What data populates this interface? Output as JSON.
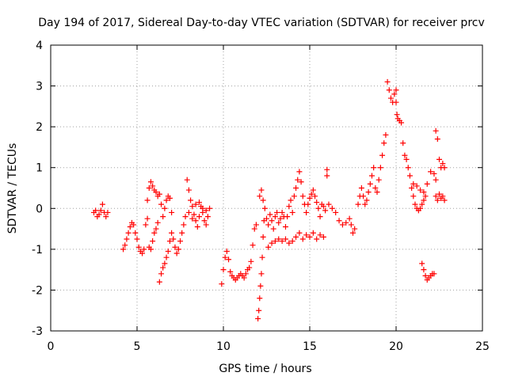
{
  "chart_data": {
    "type": "scatter",
    "title": "Day 194 of 2017, Sidereal Day-to-day VTEC variation (SDTVAR) for receiver prcv",
    "xlabel": "GPS time / hours",
    "ylabel": "SDTVAR / TECUs",
    "xlim": [
      0,
      25
    ],
    "ylim": [
      -3,
      4
    ],
    "xticks": [
      0,
      5,
      10,
      15,
      20,
      25
    ],
    "yticks": [
      -3,
      -2,
      -1,
      0,
      1,
      2,
      3,
      4
    ],
    "grid": true,
    "marker": "+",
    "color": "#ff0000",
    "series": [
      {
        "name": "SDTVAR",
        "points": [
          [
            2.5,
            -0.1
          ],
          [
            2.6,
            -0.05
          ],
          [
            2.7,
            -0.2
          ],
          [
            2.8,
            -0.15
          ],
          [
            2.9,
            -0.05
          ],
          [
            3.0,
            0.1
          ],
          [
            3.1,
            -0.1
          ],
          [
            3.2,
            -0.2
          ],
          [
            3.3,
            -0.1
          ],
          [
            4.2,
            -1.0
          ],
          [
            4.3,
            -0.9
          ],
          [
            4.4,
            -0.75
          ],
          [
            4.5,
            -0.6
          ],
          [
            4.6,
            -0.45
          ],
          [
            4.7,
            -0.35
          ],
          [
            4.8,
            -0.4
          ],
          [
            4.9,
            -0.6
          ],
          [
            5.0,
            -0.75
          ],
          [
            5.1,
            -0.95
          ],
          [
            5.2,
            -1.05
          ],
          [
            5.3,
            -1.1
          ],
          [
            5.4,
            -1.0
          ],
          [
            5.5,
            -0.4
          ],
          [
            5.6,
            -0.25
          ],
          [
            5.7,
            -0.95
          ],
          [
            5.8,
            -1.0
          ],
          [
            5.9,
            -0.8
          ],
          [
            6.0,
            -0.6
          ],
          [
            6.1,
            -0.5
          ],
          [
            6.2,
            -0.35
          ],
          [
            5.6,
            0.2
          ],
          [
            5.7,
            0.5
          ],
          [
            5.8,
            0.65
          ],
          [
            5.9,
            0.55
          ],
          [
            6.0,
            0.45
          ],
          [
            6.1,
            0.4
          ],
          [
            6.2,
            0.3
          ],
          [
            6.3,
            -1.8
          ],
          [
            6.4,
            -1.6
          ],
          [
            6.5,
            -1.45
          ],
          [
            6.6,
            -1.35
          ],
          [
            6.7,
            -1.2
          ],
          [
            6.8,
            -1.05
          ],
          [
            6.9,
            -0.8
          ],
          [
            7.0,
            -0.6
          ],
          [
            7.1,
            -0.75
          ],
          [
            7.2,
            -0.95
          ],
          [
            7.3,
            -1.1
          ],
          [
            7.4,
            -1.0
          ],
          [
            7.5,
            -0.8
          ],
          [
            7.6,
            -0.6
          ],
          [
            7.7,
            -0.4
          ],
          [
            7.8,
            -0.2
          ],
          [
            6.3,
            0.35
          ],
          [
            6.4,
            0.1
          ],
          [
            6.5,
            -0.2
          ],
          [
            6.6,
            0.0
          ],
          [
            6.7,
            0.2
          ],
          [
            6.8,
            0.3
          ],
          [
            6.9,
            0.25
          ],
          [
            7.0,
            -0.1
          ],
          [
            7.9,
            0.7
          ],
          [
            8.0,
            0.45
          ],
          [
            8.1,
            0.2
          ],
          [
            8.2,
            0.05
          ],
          [
            8.3,
            -0.15
          ],
          [
            8.4,
            -0.3
          ],
          [
            8.5,
            -0.45
          ],
          [
            8.6,
            -0.2
          ],
          [
            8.7,
            0.05
          ],
          [
            8.8,
            -0.1
          ],
          [
            8.9,
            -0.3
          ],
          [
            9.0,
            -0.4
          ],
          [
            9.1,
            -0.2
          ],
          [
            9.2,
            0.0
          ],
          [
            8.0,
            -0.1
          ],
          [
            8.2,
            -0.25
          ],
          [
            8.4,
            0.1
          ],
          [
            8.6,
            0.15
          ],
          [
            8.8,
            0.0
          ],
          [
            9.0,
            -0.05
          ],
          [
            9.9,
            -1.85
          ],
          [
            10.0,
            -1.5
          ],
          [
            10.1,
            -1.2
          ],
          [
            10.2,
            -1.05
          ],
          [
            10.3,
            -1.25
          ],
          [
            10.4,
            -1.55
          ],
          [
            10.5,
            -1.65
          ],
          [
            10.6,
            -1.7
          ],
          [
            10.7,
            -1.75
          ],
          [
            10.8,
            -1.7
          ],
          [
            10.9,
            -1.65
          ],
          [
            11.0,
            -1.6
          ],
          [
            11.1,
            -1.65
          ],
          [
            11.2,
            -1.7
          ],
          [
            11.3,
            -1.6
          ],
          [
            11.4,
            -1.5
          ],
          [
            11.5,
            -1.45
          ],
          [
            11.6,
            -1.3
          ],
          [
            11.7,
            -0.9
          ],
          [
            11.8,
            -0.5
          ],
          [
            11.9,
            -0.4
          ],
          [
            12.0,
            -2.7
          ],
          [
            12.05,
            -2.5
          ],
          [
            12.1,
            -2.2
          ],
          [
            12.15,
            -1.9
          ],
          [
            12.2,
            -1.6
          ],
          [
            12.25,
            -1.2
          ],
          [
            12.3,
            -0.7
          ],
          [
            12.35,
            -0.3
          ],
          [
            12.4,
            0.0
          ],
          [
            12.1,
            0.3
          ],
          [
            12.2,
            0.45
          ],
          [
            12.3,
            0.2
          ],
          [
            12.5,
            -0.25
          ],
          [
            12.6,
            -0.4
          ],
          [
            12.7,
            -0.15
          ],
          [
            12.8,
            -0.3
          ],
          [
            12.9,
            -0.5
          ],
          [
            13.0,
            -0.2
          ],
          [
            13.1,
            -0.1
          ],
          [
            13.2,
            -0.35
          ],
          [
            13.3,
            -0.25
          ],
          [
            13.4,
            -0.1
          ],
          [
            13.5,
            -0.2
          ],
          [
            13.6,
            -0.45
          ],
          [
            13.7,
            -0.2
          ],
          [
            13.8,
            0.05
          ],
          [
            13.9,
            0.2
          ],
          [
            14.0,
            -0.1
          ],
          [
            12.6,
            -0.95
          ],
          [
            12.8,
            -0.85
          ],
          [
            13.0,
            -0.8
          ],
          [
            13.2,
            -0.75
          ],
          [
            13.4,
            -0.8
          ],
          [
            13.6,
            -0.75
          ],
          [
            13.8,
            -0.85
          ],
          [
            14.0,
            -0.8
          ],
          [
            14.1,
            0.3
          ],
          [
            14.2,
            0.5
          ],
          [
            14.3,
            0.7
          ],
          [
            14.4,
            0.9
          ],
          [
            14.5,
            0.65
          ],
          [
            14.6,
            0.3
          ],
          [
            14.7,
            0.1
          ],
          [
            14.8,
            -0.1
          ],
          [
            14.9,
            0.1
          ],
          [
            15.0,
            0.25
          ],
          [
            15.1,
            0.35
          ],
          [
            15.2,
            0.45
          ],
          [
            15.3,
            0.3
          ],
          [
            15.4,
            0.15
          ],
          [
            15.5,
            0.0
          ],
          [
            15.6,
            -0.2
          ],
          [
            15.7,
            0.1
          ],
          [
            15.8,
            0.05
          ],
          [
            15.9,
            -0.05
          ],
          [
            16.0,
            0.95
          ],
          [
            16.0,
            0.8
          ],
          [
            14.2,
            -0.7
          ],
          [
            14.4,
            -0.6
          ],
          [
            14.6,
            -0.75
          ],
          [
            14.8,
            -0.65
          ],
          [
            15.0,
            -0.7
          ],
          [
            15.2,
            -0.6
          ],
          [
            15.4,
            -0.75
          ],
          [
            15.6,
            -0.65
          ],
          [
            15.8,
            -0.7
          ],
          [
            16.1,
            0.1
          ],
          [
            16.3,
            0.0
          ],
          [
            16.5,
            -0.1
          ],
          [
            16.7,
            -0.3
          ],
          [
            16.9,
            -0.4
          ],
          [
            17.1,
            -0.35
          ],
          [
            17.3,
            -0.25
          ],
          [
            17.4,
            -0.4
          ],
          [
            17.5,
            -0.6
          ],
          [
            17.6,
            -0.5
          ],
          [
            17.8,
            0.1
          ],
          [
            17.9,
            0.3
          ],
          [
            18.0,
            0.5
          ],
          [
            18.1,
            0.3
          ],
          [
            18.2,
            0.1
          ],
          [
            18.3,
            0.2
          ],
          [
            18.4,
            0.4
          ],
          [
            18.5,
            0.6
          ],
          [
            18.6,
            0.8
          ],
          [
            18.7,
            1.0
          ],
          [
            18.8,
            0.5
          ],
          [
            18.9,
            0.4
          ],
          [
            19.0,
            0.7
          ],
          [
            19.1,
            1.0
          ],
          [
            19.2,
            1.3
          ],
          [
            19.3,
            1.6
          ],
          [
            19.4,
            1.8
          ],
          [
            19.5,
            3.1
          ],
          [
            19.6,
            2.9
          ],
          [
            19.7,
            2.7
          ],
          [
            19.8,
            2.6
          ],
          [
            19.9,
            2.8
          ],
          [
            20.0,
            2.9
          ],
          [
            20.0,
            2.6
          ],
          [
            20.05,
            2.3
          ],
          [
            20.1,
            2.2
          ],
          [
            20.2,
            2.15
          ],
          [
            20.3,
            2.1
          ],
          [
            20.4,
            1.6
          ],
          [
            20.5,
            1.3
          ],
          [
            20.6,
            1.2
          ],
          [
            20.7,
            1.0
          ],
          [
            20.8,
            0.8
          ],
          [
            20.9,
            0.5
          ],
          [
            21.0,
            0.3
          ],
          [
            21.1,
            0.1
          ],
          [
            21.2,
            0.0
          ],
          [
            21.3,
            -0.05
          ],
          [
            21.4,
            0.0
          ],
          [
            21.5,
            0.1
          ],
          [
            21.6,
            0.2
          ],
          [
            21.7,
            0.3
          ],
          [
            21.0,
            0.6
          ],
          [
            21.2,
            0.55
          ],
          [
            21.4,
            0.45
          ],
          [
            21.6,
            0.4
          ],
          [
            21.8,
            0.6
          ],
          [
            22.0,
            0.9
          ],
          [
            22.2,
            0.85
          ],
          [
            22.3,
            0.7
          ],
          [
            21.5,
            -1.35
          ],
          [
            21.6,
            -1.5
          ],
          [
            21.7,
            -1.65
          ],
          [
            21.8,
            -1.75
          ],
          [
            21.9,
            -1.7
          ],
          [
            22.0,
            -1.65
          ],
          [
            22.1,
            -1.6
          ],
          [
            22.2,
            -1.6
          ],
          [
            22.3,
            1.9
          ],
          [
            22.4,
            1.7
          ],
          [
            22.5,
            1.2
          ],
          [
            22.6,
            1.0
          ],
          [
            22.7,
            1.1
          ],
          [
            22.8,
            1.0
          ],
          [
            22.3,
            0.3
          ],
          [
            22.4,
            0.2
          ],
          [
            22.5,
            0.35
          ],
          [
            22.6,
            0.25
          ],
          [
            22.7,
            0.3
          ],
          [
            22.8,
            0.2
          ]
        ]
      }
    ]
  }
}
